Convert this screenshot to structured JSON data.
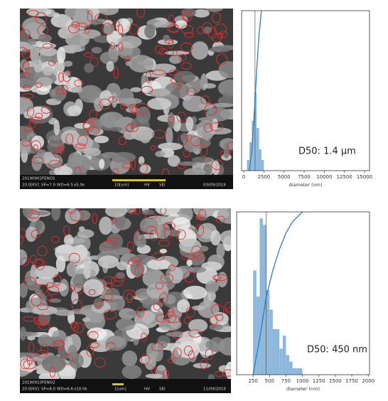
{
  "chart_data": [
    {
      "type": "histogram",
      "xlabel": "diameter (nm)",
      "annotation": "D50: 1.4 μm",
      "bins": [
        400,
        700,
        1000,
        1300,
        1600,
        1900,
        2200,
        2500
      ],
      "values": [
        3,
        8,
        14,
        22,
        12,
        6,
        3
      ],
      "color": "#8db8dc",
      "xlim": [
        -265,
        15620
      ],
      "xticks": [
        0,
        2500,
        5000,
        7500,
        10000,
        12500,
        15000
      ],
      "ylim": [
        0,
        45
      ],
      "cumulative": {
        "x": [
          700,
          1000,
          1300,
          1600,
          1900,
          2200
        ],
        "values": [
          0,
          12,
          35,
          62,
          85,
          100
        ],
        "color": "#2f7bbf"
      },
      "y2lim": [
        0,
        100
      ],
      "d50": 1400
    },
    {
      "type": "histogram",
      "xlabel": "diameter (nm)",
      "annotation": "D50: 450 nm",
      "bins": [
        250,
        300,
        350,
        400,
        450,
        500,
        550,
        600,
        650,
        700,
        750,
        800,
        850,
        900,
        950,
        1000
      ],
      "values": [
        16,
        12,
        24,
        23,
        13,
        10,
        7,
        7,
        4,
        6,
        3,
        2,
        1,
        1,
        1
      ],
      "color": "#8db8dc",
      "xlim": [
        0,
        2020
      ],
      "xticks": [
        250,
        500,
        750,
        1000,
        1250,
        1500,
        1750,
        2000
      ],
      "ylim": [
        0,
        25
      ],
      "cumulative": {
        "x": [
          250,
          350,
          450,
          550,
          650,
          750,
          850,
          1000
        ],
        "values": [
          0,
          22,
          48,
          64,
          77,
          87,
          94,
          100
        ],
        "color": "#2f7bbf"
      },
      "y2lim": [
        0,
        100
      ],
      "d50": 450
    }
  ],
  "images": [
    {
      "id": "20190902FENO1",
      "info": [
        "20.0[KV]",
        "SP=7.0",
        "WD=6.5",
        "x5.0k",
        "10[um]",
        "HV",
        "SEI",
        "03/09/2019"
      ]
    },
    {
      "id": "20190910FENO2",
      "info": [
        "20.0[KV]",
        "SP=8.0",
        "WD=6.6",
        "x10.0k",
        "1[um]",
        "HV",
        "SEI",
        "11/09/2019"
      ]
    }
  ]
}
